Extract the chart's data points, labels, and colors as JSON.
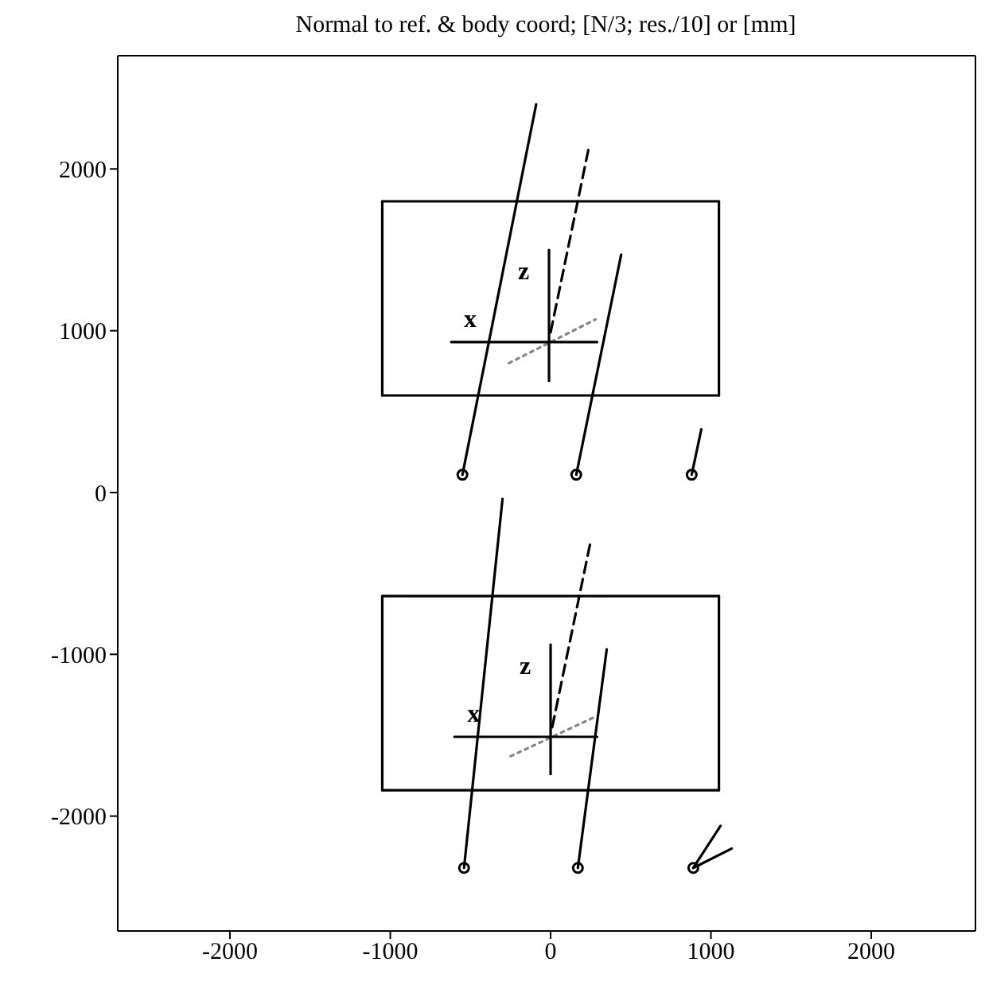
{
  "chart_data": {
    "type": "line",
    "title": "Normal to ref. & body coord; [N/3; res./10] or [mm]",
    "xlim": [
      -2700,
      2650
    ],
    "ylim": [
      -2710,
      2700
    ],
    "xticks": [
      -2000,
      -1000,
      0,
      1000,
      2000
    ],
    "yticks": [
      -2000,
      -1000,
      0,
      1000,
      2000
    ],
    "grid": false,
    "marker": "none",
    "line_style": "solid",
    "series": [
      {
        "color": "#000000",
        "x": [
          -1050,
          1050
        ],
        "values": [
          600,
          600
        ]
      },
      {
        "color": "#000000",
        "x": [
          -1050,
          1050
        ],
        "values": [
          1800,
          1800
        ]
      },
      {
        "color": "#000000",
        "x": [
          -1050,
          -1050
        ],
        "values": [
          600,
          1800
        ]
      },
      {
        "color": "#000000",
        "x": [
          1050,
          1050
        ],
        "values": [
          600,
          1800
        ]
      },
      {
        "color": "#000000",
        "x": [
          -550,
          -90
        ],
        "values": [
          110,
          2400
        ]
      },
      {
        "color": "#000000",
        "x": [
          160,
          440
        ],
        "values": [
          110,
          1470
        ]
      },
      {
        "color": "#000000",
        "x": [
          880,
          940
        ],
        "values": [
          110,
          390
        ]
      },
      {
        "color": "#000000",
        "line_style": "dashed",
        "x": [
          0,
          240
        ],
        "values": [
          990,
          2140
        ]
      },
      {
        "color": "#888888",
        "line_style": "dotted",
        "x": [
          -260,
          280
        ],
        "values": [
          800,
          1070
        ]
      },
      {
        "color": "#000000",
        "x": [
          -620,
          290
        ],
        "values": [
          930,
          930
        ]
      },
      {
        "color": "#000000",
        "x": [
          -10,
          -10
        ],
        "values": [
          690,
          1500
        ]
      },
      {
        "color": "#000000",
        "x": [
          -1050,
          1050
        ],
        "values": [
          -1840,
          -1840
        ]
      },
      {
        "color": "#000000",
        "x": [
          -1050,
          1050
        ],
        "values": [
          -640,
          -640
        ]
      },
      {
        "color": "#000000",
        "x": [
          -1050,
          -1050
        ],
        "values": [
          -1840,
          -640
        ]
      },
      {
        "color": "#000000",
        "x": [
          1050,
          1050
        ],
        "values": [
          -1840,
          -640
        ]
      },
      {
        "color": "#000000",
        "x": [
          -540,
          -300
        ],
        "values": [
          -2320,
          -40
        ]
      },
      {
        "color": "#000000",
        "x": [
          170,
          350
        ],
        "values": [
          -2320,
          -970
        ]
      },
      {
        "color": "#000000",
        "x": [
          890,
          1060
        ],
        "values": [
          -2320,
          -2060
        ]
      },
      {
        "color": "#000000",
        "x": [
          890,
          1130
        ],
        "values": [
          -2320,
          -2200
        ]
      },
      {
        "color": "#000000",
        "line_style": "dashed",
        "x": [
          10,
          250
        ],
        "values": [
          -1450,
          -300
        ]
      },
      {
        "color": "#888888",
        "line_style": "dotted",
        "x": [
          -250,
          270
        ],
        "values": [
          -1630,
          -1390
        ]
      },
      {
        "color": "#000000",
        "x": [
          -600,
          290
        ],
        "values": [
          -1510,
          -1510
        ]
      },
      {
        "color": "#000000",
        "x": [
          0,
          0
        ],
        "values": [
          -1740,
          -940
        ]
      },
      {
        "type": "scatter",
        "marker": "circle",
        "color": "#000000",
        "x": [
          -550,
          160,
          880,
          -540,
          170,
          890
        ],
        "values": [
          110,
          110,
          110,
          -2320,
          -2320,
          -2320
        ]
      }
    ],
    "annotations": [
      {
        "text": "x",
        "x": -620,
        "y": 930
      },
      {
        "text": "z",
        "x": -10,
        "y": 1500
      },
      {
        "text": "x",
        "x": -600,
        "y": -1510
      },
      {
        "text": "z",
        "x": 0,
        "y": -940
      }
    ]
  }
}
